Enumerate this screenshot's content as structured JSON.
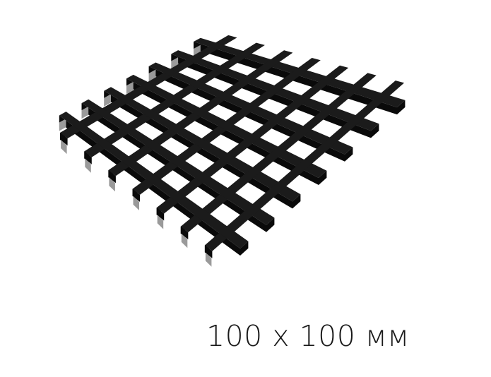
{
  "caption": {
    "text": "100 x 100 мм"
  },
  "product": {
    "icon": "ceiling-grid-icon",
    "colors": {
      "top_face": "#1b1b1b",
      "side_face": "#0a0a0a",
      "hanger_clip": "#9a9a9a",
      "background": "#ffffff"
    }
  }
}
